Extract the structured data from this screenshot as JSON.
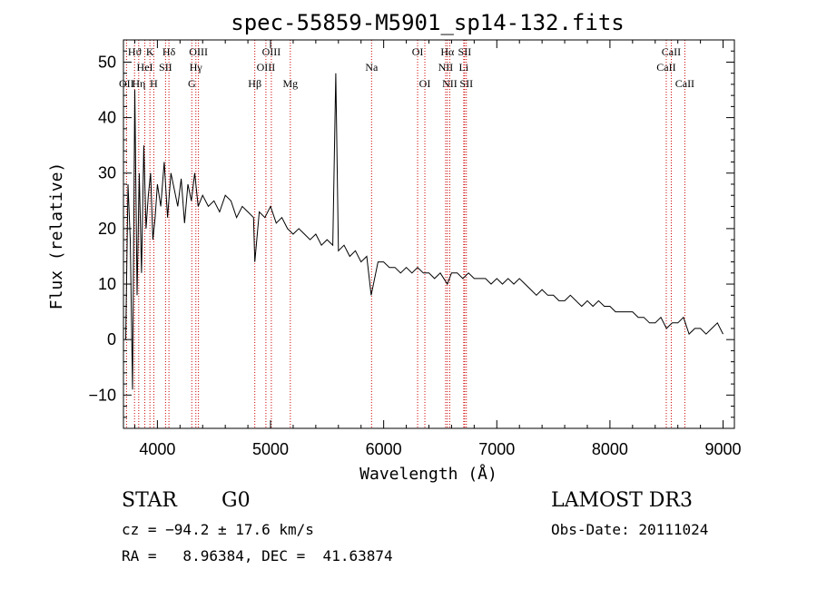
{
  "chart_data": {
    "type": "line",
    "title": "spec-55859-M5901_sp14-132.fits",
    "xlabel": "Wavelength (Å)",
    "ylabel": "Flux (relative)",
    "xlim": [
      3700,
      9100
    ],
    "ylim": [
      -16,
      54
    ],
    "xticks": [
      4000,
      5000,
      6000,
      7000,
      8000,
      9000
    ],
    "xtick_labels": [
      "4000",
      "5000",
      "6000",
      "7000",
      "8000",
      "9000"
    ],
    "yticks": [
      -10,
      0,
      10,
      20,
      30,
      40,
      50
    ],
    "ytick_labels": [
      "−10",
      "0",
      "10",
      "20",
      "30",
      "40",
      "50"
    ],
    "grid": false,
    "series": [
      {
        "name": "flux",
        "x": [
          3720,
          3740,
          3760,
          3780,
          3800,
          3820,
          3840,
          3860,
          3880,
          3900,
          3920,
          3940,
          3960,
          3980,
          4000,
          4030,
          4060,
          4090,
          4120,
          4150,
          4180,
          4210,
          4240,
          4270,
          4300,
          4330,
          4360,
          4400,
          4450,
          4500,
          4550,
          4600,
          4650,
          4700,
          4750,
          4800,
          4850,
          4861,
          4900,
          4950,
          5000,
          5050,
          5100,
          5150,
          5200,
          5250,
          5300,
          5350,
          5400,
          5450,
          5500,
          5550,
          5577,
          5600,
          5650,
          5700,
          5750,
          5800,
          5850,
          5890,
          5950,
          6000,
          6050,
          6100,
          6150,
          6200,
          6250,
          6300,
          6350,
          6400,
          6450,
          6500,
          6563,
          6600,
          6650,
          6700,
          6750,
          6800,
          6850,
          6900,
          6950,
          7000,
          7050,
          7100,
          7150,
          7200,
          7250,
          7300,
          7350,
          7400,
          7450,
          7500,
          7550,
          7600,
          7650,
          7700,
          7750,
          7800,
          7850,
          7900,
          7950,
          8000,
          8050,
          8100,
          8150,
          8200,
          8250,
          8300,
          8350,
          8400,
          8450,
          8500,
          8550,
          8600,
          8650,
          8700,
          8750,
          8800,
          8850,
          8900,
          8950,
          9000
        ],
        "y": [
          0,
          28,
          18,
          -9,
          45,
          8,
          30,
          12,
          35,
          20,
          26,
          30,
          18,
          22,
          28,
          24,
          32,
          22,
          30,
          27,
          24,
          29,
          21,
          28,
          25,
          30,
          24,
          26,
          24,
          25,
          23,
          26,
          25,
          22,
          24,
          23,
          22,
          14,
          23,
          22,
          24,
          21,
          22,
          20,
          19,
          20,
          19,
          18,
          19,
          17,
          18,
          17,
          48,
          16,
          17,
          15,
          16,
          14,
          15,
          8,
          14,
          14,
          13,
          13,
          12,
          13,
          12,
          13,
          12,
          12,
          11,
          12,
          10,
          12,
          12,
          11,
          12,
          11,
          11,
          11,
          10,
          11,
          10,
          11,
          10,
          11,
          10,
          9,
          8,
          9,
          8,
          8,
          7,
          7,
          8,
          7,
          6,
          7,
          6,
          7,
          6,
          6,
          5,
          5,
          5,
          5,
          4,
          4,
          3,
          3,
          4,
          2,
          3,
          3,
          4,
          1,
          2,
          2,
          1,
          2,
          3,
          1
        ]
      }
    ],
    "annotations": [
      {
        "label": "Hϑ",
        "wavelength": 3798,
        "row": 0
      },
      {
        "label": "OII",
        "wavelength": 3727,
        "row": 2
      },
      {
        "label": "K",
        "wavelength": 3934,
        "row": 0
      },
      {
        "label": "HeI",
        "wavelength": 3889,
        "row": 1
      },
      {
        "label": "Hη",
        "wavelength": 3835,
        "row": 2
      },
      {
        "label": "SII",
        "wavelength": 4072,
        "row": 1
      },
      {
        "label": "H",
        "wavelength": 3968,
        "row": 2
      },
      {
        "label": "Hδ",
        "wavelength": 4102,
        "row": 0
      },
      {
        "label": "OIII",
        "wavelength": 4363,
        "row": 0
      },
      {
        "label": "Hγ",
        "wavelength": 4340,
        "row": 1
      },
      {
        "label": "G",
        "wavelength": 4304,
        "row": 2
      },
      {
        "label": "OIII",
        "wavelength": 5007,
        "row": 0
      },
      {
        "label": "OIII",
        "wavelength": 4959,
        "row": 1
      },
      {
        "label": "Hβ",
        "wavelength": 4861,
        "row": 2
      },
      {
        "label": "Mg",
        "wavelength": 5175,
        "row": 2
      },
      {
        "label": "Na",
        "wavelength": 5893,
        "row": 1
      },
      {
        "label": "OI",
        "wavelength": 6300,
        "row": 0
      },
      {
        "label": "OI",
        "wavelength": 6364,
        "row": 2
      },
      {
        "label": "Hα",
        "wavelength": 6563,
        "row": 0
      },
      {
        "label": "SII",
        "wavelength": 6716,
        "row": 0
      },
      {
        "label": "NII",
        "wavelength": 6548,
        "row": 1
      },
      {
        "label": "Li",
        "wavelength": 6708,
        "row": 1
      },
      {
        "label": "NII",
        "wavelength": 6584,
        "row": 2
      },
      {
        "label": "SII",
        "wavelength": 6731,
        "row": 2
      },
      {
        "label": "CaII",
        "wavelength": 8542,
        "row": 0
      },
      {
        "label": "CaII",
        "wavelength": 8498,
        "row": 1
      },
      {
        "label": "CaII",
        "wavelength": 8662,
        "row": 2
      }
    ]
  },
  "info": {
    "class": "STAR",
    "subclass": "G0",
    "survey": "LAMOST DR3",
    "cz": "cz = −94.2 ± 17.6 km/s",
    "obs_date": "Obs-Date: 20111024",
    "coords": "RA =   8.96384, DEC =  41.63874"
  },
  "colors": {
    "line": "#000000",
    "marker": "#cc0000",
    "background": "#ffffff"
  }
}
